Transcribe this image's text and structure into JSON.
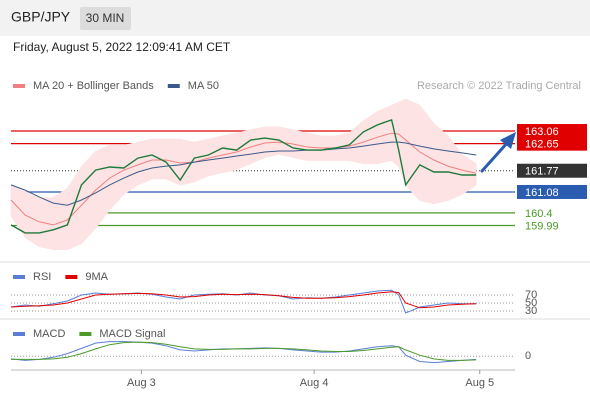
{
  "header": {
    "symbol": "GBP/JPY",
    "interval": "30 MIN",
    "timestamp": "Friday, August 5, 2022 12:09:41 AM CET",
    "credit": "Research © 2022 Trading Central"
  },
  "chart_data": [
    {
      "type": "line",
      "x": [
        0,
        4,
        8,
        12,
        16,
        20,
        24,
        28,
        32,
        36,
        40,
        44,
        48,
        52,
        56,
        60,
        64,
        68,
        72,
        76,
        80,
        84,
        88,
        92,
        96,
        100,
        104,
        108,
        110,
        112,
        116,
        120,
        124,
        128,
        132
      ],
      "xlim": [
        0,
        143
      ],
      "xticks": [
        {
          "value": 37,
          "label": "Aug 3"
        },
        {
          "value": 86,
          "label": "Aug 4"
        },
        {
          "value": 133,
          "label": "Aug 5"
        }
      ],
      "ylim": [
        158.87,
        164.88
      ],
      "series": [
        {
          "name": "MA 20 + Bollinger Bands",
          "color": "#f08080",
          "band_color": "#fde3e3",
          "values": [
            160.82,
            160.33,
            160.11,
            160.01,
            160.17,
            160.65,
            161.14,
            161.53,
            161.79,
            161.96,
            162.12,
            162.12,
            162.02,
            162.05,
            162.18,
            162.28,
            162.38,
            162.54,
            162.67,
            162.7,
            162.64,
            162.54,
            162.51,
            162.51,
            162.57,
            162.7,
            162.86,
            162.99,
            162.96,
            162.77,
            162.38,
            162.12,
            161.92,
            161.79,
            161.69
          ],
          "upper": [
            161.3,
            161.1,
            160.9,
            160.9,
            161.2,
            161.9,
            162.4,
            162.6,
            162.6,
            162.7,
            162.8,
            162.8,
            162.8,
            162.7,
            162.8,
            162.9,
            163.0,
            163.1,
            163.2,
            163.2,
            163.1,
            163.0,
            162.9,
            162.9,
            163.0,
            163.4,
            163.7,
            163.9,
            164.0,
            164.1,
            163.9,
            163.3,
            162.9,
            162.3,
            162.0
          ],
          "lower": [
            160.3,
            159.6,
            159.3,
            159.2,
            159.2,
            159.4,
            159.9,
            160.5,
            161.0,
            161.3,
            161.5,
            161.5,
            161.3,
            161.4,
            161.6,
            161.7,
            161.8,
            162.0,
            162.2,
            162.3,
            162.2,
            162.1,
            162.1,
            162.1,
            162.1,
            162.0,
            162.0,
            162.1,
            161.9,
            161.3,
            160.8,
            160.7,
            160.8,
            161.0,
            161.3
          ]
        },
        {
          "name": "MA 50",
          "color": "#3a5a8c",
          "values": [
            161.31,
            161.14,
            160.92,
            160.72,
            160.65,
            160.82,
            161.05,
            161.31,
            161.53,
            161.73,
            161.86,
            161.92,
            161.96,
            162.05,
            162.12,
            162.18,
            162.25,
            162.31,
            162.38,
            162.41,
            162.41,
            162.44,
            162.44,
            162.48,
            162.51,
            162.57,
            162.64,
            162.7,
            162.7,
            162.67,
            162.57,
            162.48,
            162.41,
            162.35,
            162.28
          ]
        },
        {
          "color": "#1f7a3a",
          "values": [
            160.01,
            159.75,
            159.75,
            159.85,
            160.01,
            161.31,
            161.79,
            161.89,
            161.86,
            162.18,
            162.28,
            162.05,
            161.47,
            162.18,
            162.28,
            162.51,
            162.44,
            162.77,
            162.83,
            162.77,
            162.51,
            162.44,
            162.44,
            162.51,
            162.61,
            163.03,
            163.26,
            163.42,
            162.44,
            161.31,
            161.96,
            161.73,
            161.73,
            161.63,
            161.63
          ]
        }
      ],
      "levels": [
        {
          "value": 163.06,
          "color": "#e00000",
          "boxed": true,
          "line_style": "solid"
        },
        {
          "value": 162.65,
          "color": "#e00000",
          "boxed": true,
          "line_style": "solid"
        },
        {
          "value": 161.77,
          "color": "#333333",
          "boxed": true,
          "line_style": "dotted"
        },
        {
          "value": 161.08,
          "color": "#2a5db0",
          "boxed": true,
          "line_style": "solid"
        },
        {
          "value": 160.4,
          "color": "#4c9a2a",
          "boxed": false,
          "line_style": "solid"
        },
        {
          "value": 159.99,
          "color": "#4c9a2a",
          "boxed": false,
          "line_style": "solid"
        }
      ]
    },
    {
      "type": "line",
      "ylim": [
        0,
        100
      ],
      "yticks": [
        70,
        50,
        30
      ],
      "series": [
        {
          "name": "RSI",
          "color": "#5b7fd6",
          "values": [
            40,
            45,
            42,
            48,
            55,
            70,
            75,
            72,
            73,
            75,
            72,
            65,
            60,
            70,
            72,
            73,
            70,
            75,
            70,
            68,
            60,
            63,
            62,
            65,
            70,
            75,
            80,
            82,
            70,
            25,
            40,
            45,
            50,
            48,
            48
          ]
        },
        {
          "name": "9MA",
          "color": "#e00000",
          "values": [
            40,
            42,
            43,
            45,
            50,
            60,
            70,
            72,
            73,
            74,
            73,
            70,
            65,
            66,
            70,
            72,
            71,
            72,
            71,
            68,
            64,
            62,
            62,
            63,
            66,
            70,
            75,
            78,
            76,
            50,
            38,
            40,
            45,
            47,
            48
          ]
        }
      ]
    },
    {
      "type": "line",
      "ylim": [
        -0.3,
        0.5
      ],
      "yticks": [
        0
      ],
      "series": [
        {
          "name": "MACD",
          "color": "#5b7fd6",
          "values": [
            -0.05,
            -0.08,
            -0.06,
            -0.02,
            0.05,
            0.15,
            0.25,
            0.28,
            0.28,
            0.27,
            0.25,
            0.2,
            0.12,
            0.1,
            0.12,
            0.14,
            0.14,
            0.15,
            0.16,
            0.15,
            0.12,
            0.1,
            0.08,
            0.08,
            0.1,
            0.14,
            0.18,
            0.2,
            0.18,
            0.02,
            -0.1,
            -0.12,
            -0.1,
            -0.08,
            -0.06
          ]
        },
        {
          "name": "MACD Signal",
          "color": "#4c9a2a",
          "values": [
            -0.06,
            -0.06,
            -0.06,
            -0.05,
            -0.02,
            0.05,
            0.14,
            0.22,
            0.26,
            0.27,
            0.26,
            0.23,
            0.18,
            0.14,
            0.13,
            0.13,
            0.14,
            0.14,
            0.15,
            0.15,
            0.14,
            0.12,
            0.1,
            0.09,
            0.09,
            0.11,
            0.14,
            0.17,
            0.18,
            0.12,
            0.02,
            -0.05,
            -0.08,
            -0.08,
            -0.07
          ]
        }
      ]
    }
  ]
}
